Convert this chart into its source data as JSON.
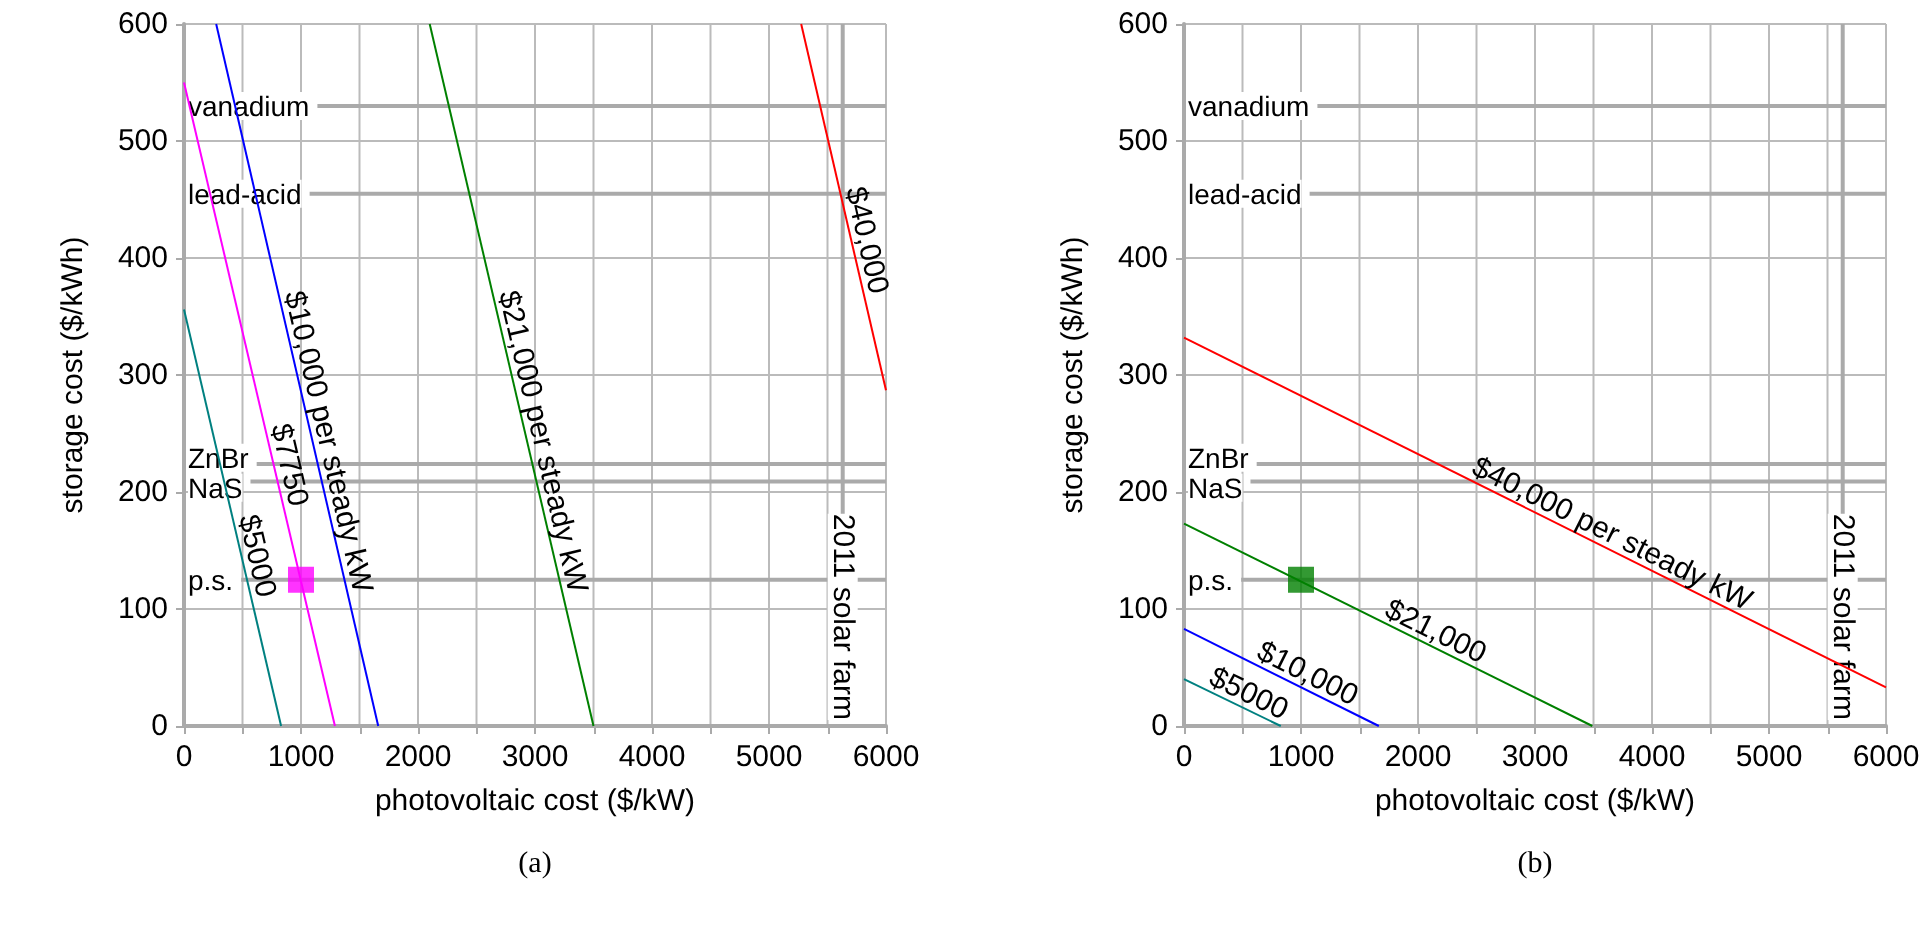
{
  "chart_data": [
    {
      "type": "line",
      "xlabel": "photovoltaic cost ($/kW)",
      "ylabel": "storage cost ($/kWh)",
      "xlim": [
        0,
        6000
      ],
      "ylim": [
        0,
        600
      ],
      "xticks": [
        0,
        {
          "value": 500,
          "label": null
        },
        1000,
        {
          "value": 1500,
          "label": null
        },
        2000,
        {
          "value": 2500,
          "label": null
        },
        3000,
        {
          "value": 3500,
          "label": null
        },
        4000,
        {
          "value": 4500,
          "label": null
        },
        5000,
        {
          "value": 5500,
          "label": null
        },
        6000
      ],
      "yticks": [
        0,
        100,
        200,
        300,
        400,
        500,
        600
      ],
      "grid": true,
      "marker": "none",
      "line_style": "solid",
      "series": [
        {
          "name": "$5000",
          "color": "#008080",
          "x": [
            0,
            830
          ],
          "values": [
            356,
            0
          ]
        },
        {
          "name": "$7750",
          "color": "#ff00ff",
          "x": [
            0,
            1290
          ],
          "values": [
            550,
            0
          ]
        },
        {
          "name": "$10,000 per steady kW",
          "color": "#0000ff",
          "x": [
            275,
            1660
          ],
          "values": [
            600,
            0
          ]
        },
        {
          "name": "$21,000 per steady kW",
          "color": "#008000",
          "x": [
            2100,
            3500
          ],
          "values": [
            600,
            0
          ]
        },
        {
          "name": "$40,000",
          "color": "#ff0000",
          "x": [
            5275,
            6000
          ],
          "values": [
            600,
            287
          ]
        },
        {
          "type": "scatter",
          "marker": "square",
          "color": "#ff00ff",
          "x": [
            1000
          ],
          "values": [
            125
          ]
        }
      ],
      "ref_lines": [
        {
          "axis": "y",
          "value": 530,
          "label": "vanadium"
        },
        {
          "axis": "y",
          "value": 455,
          "label": "lead-acid"
        },
        {
          "axis": "y",
          "value": 224,
          "label": "ZnBr"
        },
        {
          "axis": "y",
          "value": 209,
          "label": "NaS"
        },
        {
          "axis": "y",
          "value": 125,
          "label": "p.s."
        },
        {
          "axis": "x",
          "value": 5630,
          "label": "2011 solar farm"
        }
      ],
      "annotations": [
        "(a)"
      ]
    },
    {
      "type": "line",
      "xlabel": "photovoltaic cost ($/kW)",
      "ylabel": "storage cost ($/kWh)",
      "xlim": [
        0,
        6000
      ],
      "ylim": [
        0,
        600
      ],
      "xticks": [
        0,
        {
          "value": 500,
          "label": null
        },
        1000,
        {
          "value": 1500,
          "label": null
        },
        2000,
        {
          "value": 2500,
          "label": null
        },
        3000,
        {
          "value": 3500,
          "label": null
        },
        4000,
        {
          "value": 4500,
          "label": null
        },
        5000,
        {
          "value": 5500,
          "label": null
        },
        6000
      ],
      "yticks": [
        0,
        100,
        200,
        300,
        400,
        500,
        600
      ],
      "grid": true,
      "marker": "none",
      "line_style": "solid",
      "series": [
        {
          "name": "$5000",
          "color": "#008080",
          "x": [
            0,
            827
          ],
          "values": [
            40,
            0
          ]
        },
        {
          "name": "$10,000",
          "color": "#0000ff",
          "x": [
            0,
            1665
          ],
          "values": [
            83,
            0
          ]
        },
        {
          "name": "$21,000",
          "color": "#008000",
          "x": [
            0,
            3490
          ],
          "values": [
            173,
            0
          ]
        },
        {
          "name": "$40,000 per steady kW",
          "color": "#ff0000",
          "x": [
            0,
            6000
          ],
          "values": [
            332,
            33
          ]
        },
        {
          "type": "scatter",
          "marker": "square",
          "color": "#008000",
          "x": [
            1000
          ],
          "values": [
            125
          ]
        }
      ],
      "ref_lines": [
        {
          "axis": "y",
          "value": 530,
          "label": "vanadium"
        },
        {
          "axis": "y",
          "value": 455,
          "label": "lead-acid"
        },
        {
          "axis": "y",
          "value": 224,
          "label": "ZnBr"
        },
        {
          "axis": "y",
          "value": 209,
          "label": "NaS"
        },
        {
          "axis": "y",
          "value": 125,
          "label": "p.s."
        },
        {
          "axis": "x",
          "value": 5630,
          "label": "2011 solar farm"
        }
      ],
      "annotations": [
        "(b)"
      ]
    }
  ]
}
